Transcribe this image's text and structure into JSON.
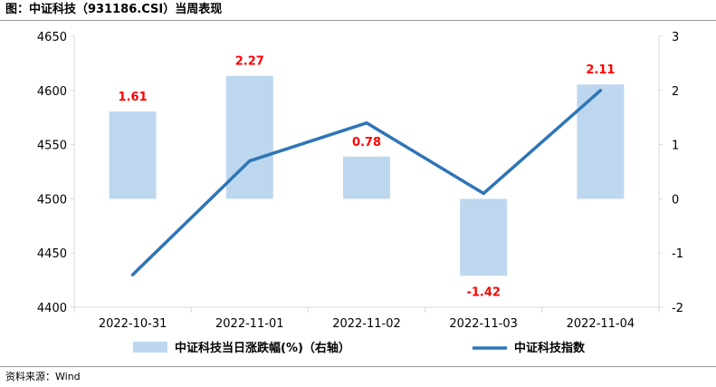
{
  "title": "图：中证科技（931186.CSI）当周表现",
  "source": "资料来源：Wind",
  "colors": {
    "bar": "#bdd7ee",
    "line": "#2e75b6",
    "label": "#ff0000",
    "axis": "#d9d9d9"
  },
  "chart_data": {
    "type": "bar",
    "categories": [
      "2022-10-31",
      "2022-11-01",
      "2022-11-02",
      "2022-11-03",
      "2022-11-04"
    ],
    "series": [
      {
        "name": "中证科技当日涨跌幅(%)（右轴）",
        "type": "bar",
        "axis": "right",
        "values": [
          1.61,
          2.27,
          0.78,
          -1.42,
          2.11
        ]
      },
      {
        "name": "中证科技指数",
        "type": "line",
        "axis": "left",
        "values": [
          4430,
          4535,
          4570,
          4505,
          4600
        ]
      }
    ],
    "data_labels": [
      "1.61",
      "2.27",
      "0.78",
      "-1.42",
      "2.11"
    ],
    "y_left": {
      "min": 4400,
      "max": 4650,
      "step": 50,
      "ticks": [
        "4400",
        "4450",
        "4500",
        "4550",
        "4600",
        "4650"
      ]
    },
    "y_right": {
      "min": -2,
      "max": 3,
      "step": 1,
      "ticks": [
        "-2",
        "-1",
        "0",
        "1",
        "2",
        "3"
      ]
    },
    "legend": {
      "position": "bottom",
      "items": [
        "中证科技当日涨跌幅(%)（右轴）",
        "中证科技指数"
      ]
    },
    "grid": false
  }
}
